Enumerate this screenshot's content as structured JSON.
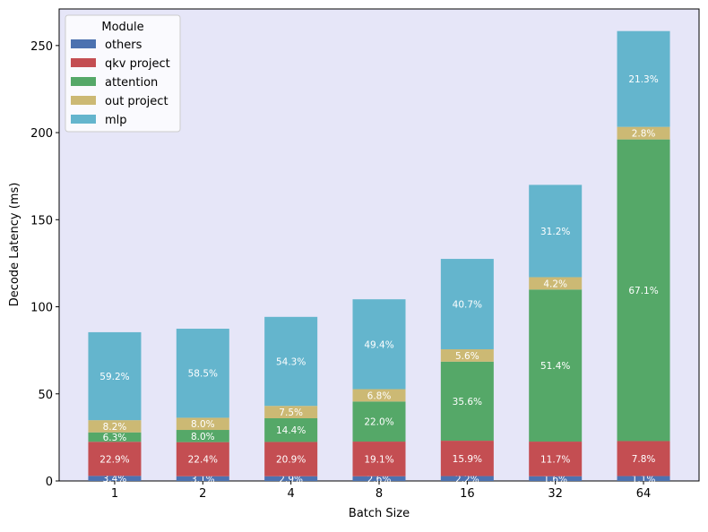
{
  "chart_data": {
    "type": "bar",
    "stacked": true,
    "xlabel": "Batch Size",
    "ylabel": "Decode Latency (ms)",
    "categories": [
      "1",
      "2",
      "4",
      "8",
      "16",
      "32",
      "64"
    ],
    "ylim": [
      0,
      271
    ],
    "yticks": [
      0,
      50,
      100,
      150,
      200,
      250
    ],
    "background": "#e6e6f8",
    "legend": {
      "title": "Module",
      "position": "top-left"
    },
    "series": [
      {
        "name": "others",
        "color": "#4c72b0",
        "values": [
          2.9,
          2.7,
          2.7,
          2.7,
          2.8,
          2.7,
          2.8
        ],
        "labels": [
          "3.4%",
          "3.1%",
          "2.9%",
          "2.6%",
          "2.2%",
          "1.6%",
          "1.1%"
        ]
      },
      {
        "name": "qkv project",
        "color": "#c44e52",
        "values": [
          19.6,
          19.6,
          19.7,
          19.9,
          20.3,
          19.9,
          20.1
        ],
        "labels": [
          "22.9%",
          "22.4%",
          "20.9%",
          "19.1%",
          "15.9%",
          "11.7%",
          "7.8%"
        ]
      },
      {
        "name": "attention",
        "color": "#55a868",
        "values": [
          5.4,
          7.0,
          13.6,
          23.0,
          45.4,
          87.3,
          173.2
        ],
        "labels": [
          "6.3%",
          "8.0%",
          "14.4%",
          "22.0%",
          "35.6%",
          "51.4%",
          "67.1%"
        ]
      },
      {
        "name": "out project",
        "color": "#ccb974",
        "values": [
          7.0,
          7.0,
          7.1,
          7.1,
          7.1,
          7.1,
          7.2
        ],
        "labels": [
          "8.2%",
          "8.0%",
          "7.5%",
          "6.8%",
          "5.6%",
          "4.2%",
          "2.8%"
        ]
      },
      {
        "name": "mlp",
        "color": "#64b5cd",
        "values": [
          50.5,
          51.1,
          51.1,
          51.6,
          51.9,
          53.0,
          55.0
        ],
        "labels": [
          "59.2%",
          "58.5%",
          "54.3%",
          "49.4%",
          "40.7%",
          "31.2%",
          "21.3%"
        ]
      }
    ]
  }
}
